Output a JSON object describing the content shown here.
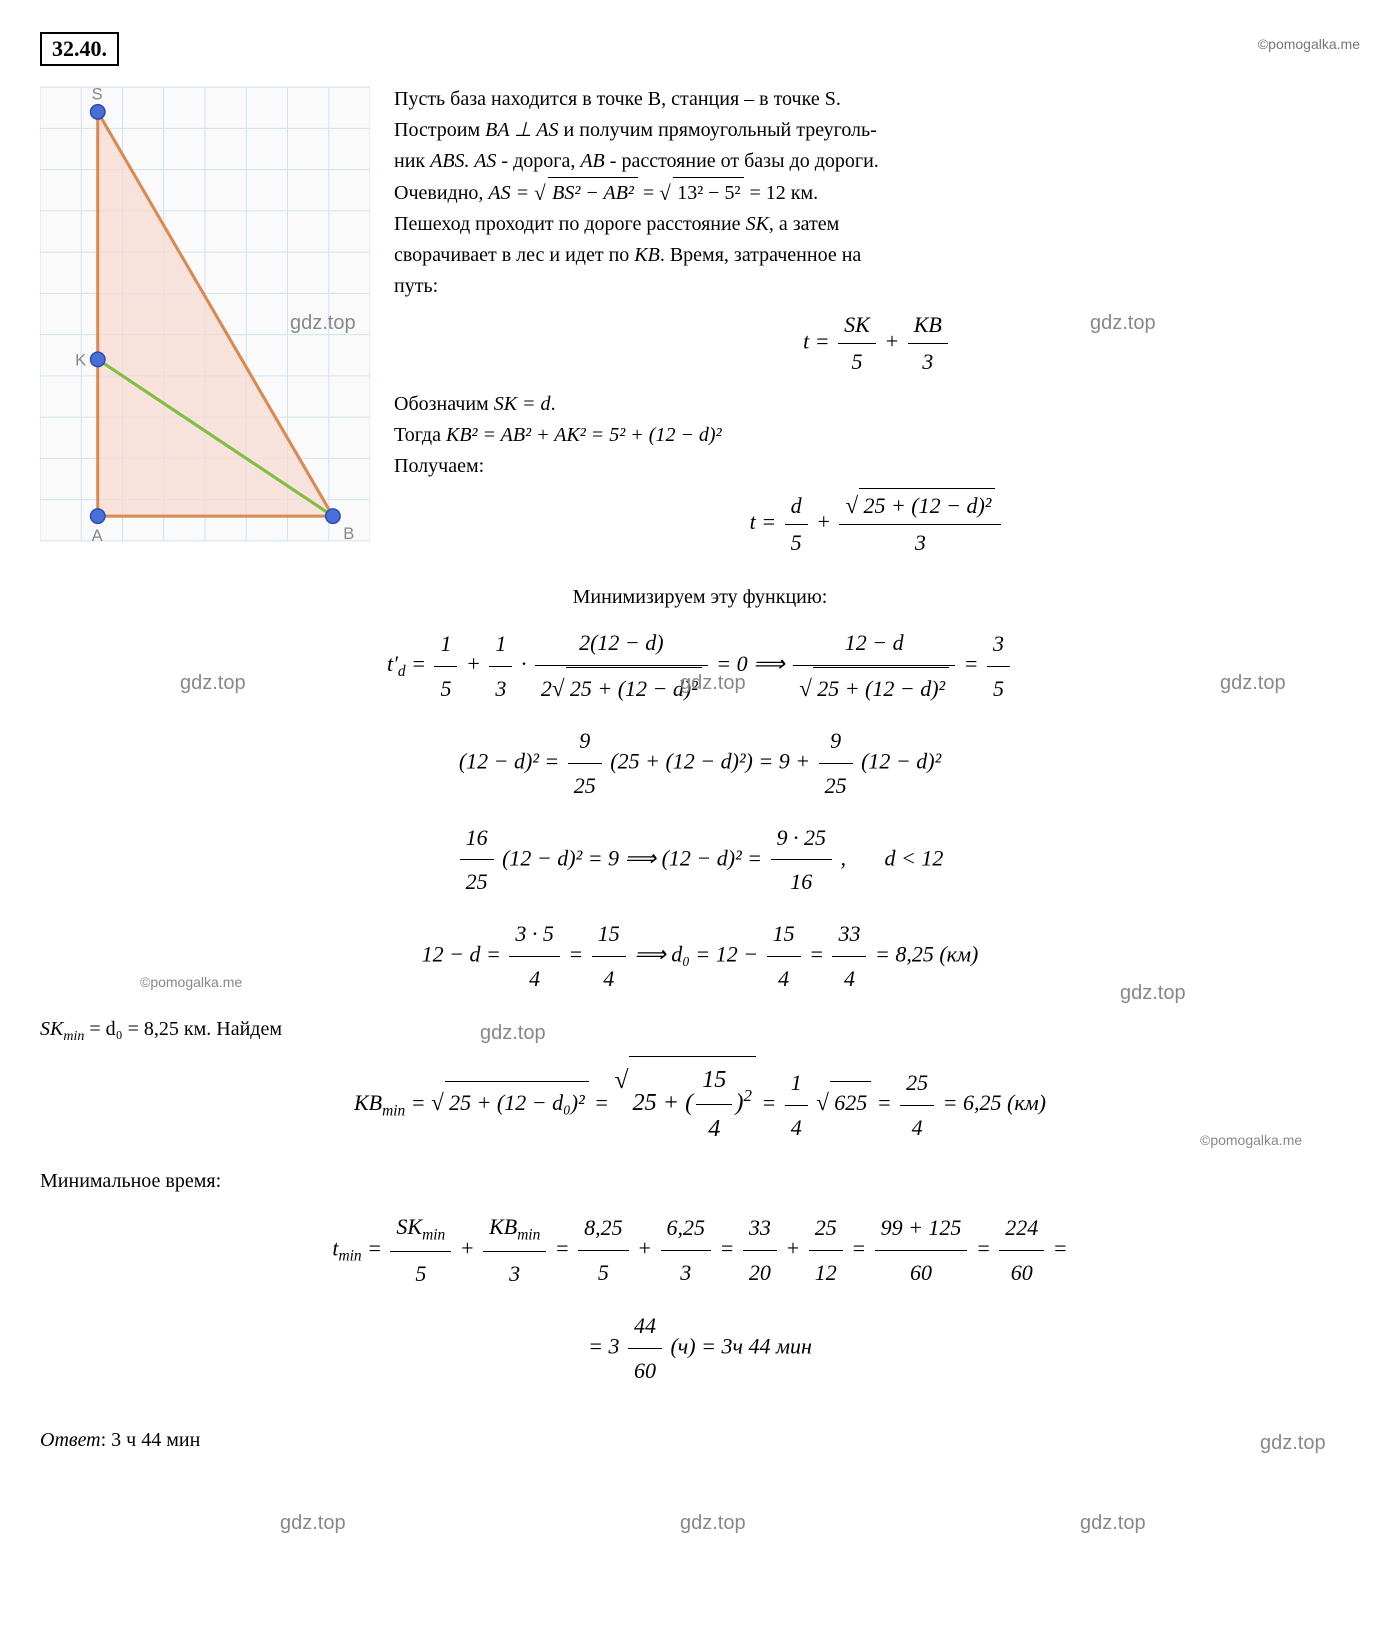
{
  "problem_number": "32.40.",
  "watermarks": {
    "pomogalka": "©pomogalka.me",
    "gdz": "gdz.top"
  },
  "diagram": {
    "grid": {
      "cell": 40,
      "cols": 8,
      "rows": 11,
      "bg": "#fafafa",
      "grid_color": "#cfe3ef"
    },
    "points": {
      "S": {
        "x": 1.4,
        "y": 0.6,
        "label": "S",
        "label_color": "#888"
      },
      "K": {
        "x": 1.4,
        "y": 6.6,
        "label": "K",
        "label_color": "#888"
      },
      "A": {
        "x": 1.4,
        "y": 10.4,
        "label": "A",
        "label_color": "#888"
      },
      "B": {
        "x": 7.1,
        "y": 10.4,
        "label": "B",
        "label_color": "#888"
      }
    },
    "triangle_fill": "#f5d9d1",
    "edge_color": "#d88a52",
    "kb_color": "#7fbf3f",
    "point_fill": "#4a6fd8",
    "point_stroke": "#2a4fb0"
  },
  "text": {
    "p1a": "Пусть база находится в точке B, станция – в точке S.",
    "p1b_prefix": "Построим ",
    "p1b_math": "BA ⊥ AS",
    "p1b_suffix": " и получим прямоугольный треуголь-",
    "p1c": "ник ",
    "p1c_abs": "ABS. AS",
    "p1c_mid": " - дорога, ",
    "p1c_ab": "AB",
    "p1c_end": " - расстояние от базы до дороги.",
    "p2_prefix": "Очевидно, ",
    "p2_lhs": "AS = ",
    "p2_rad1": "BS² − AB²",
    "p2_eq": " = ",
    "p2_rad2": "13² − 5²",
    "p2_result": " = 12 км.",
    "p3a": "Пешеход проходит по дороге расстояние ",
    "p3a_sk": "SK",
    "p3a_end": ", а затем",
    "p3b": "сворачивает в лес и идет по ",
    "p3b_kb": "KB",
    "p3b_end": ". Время, затраченное на",
    "p3c": "путь:",
    "formula1_lhs": "t = ",
    "formula1_f1_num": "SK",
    "formula1_f1_den": "5",
    "formula1_plus": " + ",
    "formula1_f2_num": "KB",
    "formula1_f2_den": "3",
    "p4a": "Обозначим ",
    "p4a_math": "SK = d",
    "p4a_dot": ".",
    "p4b_prefix": "Тогда ",
    "p4b_math": "KB² = AB² + AK² = 5² + (12 − d)²",
    "p4c": "Получаем:",
    "formula2_lhs": "t = ",
    "formula2_f1_num": "d",
    "formula2_f1_den": "5",
    "formula2_plus": " + ",
    "formula2_f2_num_rad": "25 + (12 − d)²",
    "formula2_f2_den": "3",
    "p5": "Минимизируем эту функцию:",
    "deriv_lhs": "t′",
    "deriv_sub": "d",
    "deriv_eq1": " = ",
    "deriv_f1_num": "1",
    "deriv_f1_den": "5",
    "deriv_plus1": " + ",
    "deriv_f2_num": "1",
    "deriv_f2_den": "3",
    "deriv_dot": " · ",
    "deriv_f3_num": "2(12 − d)",
    "deriv_f3_den_pre": "2",
    "deriv_f3_den_rad": "25 + (12 − d)²",
    "deriv_eq0": " = 0 ⟹ ",
    "deriv_f4_num": "12 − d",
    "deriv_f4_den_rad": "25 + (12 − d)²",
    "deriv_rhs_eq": " = ",
    "deriv_f5_num": "3",
    "deriv_f5_den": "5",
    "line6_lhs": "(12 − d)² = ",
    "line6_f1_num": "9",
    "line6_f1_den": "25",
    "line6_mid": "(25 + (12 − d)²) = 9 + ",
    "line6_f2_num": "9",
    "line6_f2_den": "25",
    "line6_end": "(12 − d)²",
    "line7_f1_num": "16",
    "line7_f1_den": "25",
    "line7_mid1": "(12 − d)² = 9 ⟹ (12 − d)² = ",
    "line7_f2_num": "9 · 25",
    "line7_f2_den": "16",
    "line7_comma": ",      ",
    "line7_cond": "d < 12",
    "line8_lhs": "12 − d = ",
    "line8_f1_num": "3 · 5",
    "line8_f1_den": "4",
    "line8_eq1": " = ",
    "line8_f2_num": "15",
    "line8_f2_den": "4",
    "line8_arrow": " ⟹ ",
    "line8_d0": "d₀ = 12 − ",
    "line8_f3_num": "15",
    "line8_f3_den": "4",
    "line8_eq2": " = ",
    "line8_f4_num": "33",
    "line8_f4_den": "4",
    "line8_result": " = 8,25 (км)",
    "line9_lhs": "SK",
    "line9_sub": "min",
    "line9_mid": " = d₀ = 8,25 км.  Найдем",
    "line10_lhs": "KB",
    "line10_sub": "min",
    "line10_eq1": " = ",
    "line10_rad1": "25 + (12 − d₀)²",
    "line10_eq2": " = ",
    "line10_rad2_pre": "25 + ",
    "line10_rad2_frac_num": "15",
    "line10_rad2_frac_den": "4",
    "line10_rad2_sup": "2",
    "line10_eq3": " = ",
    "line10_f1_num": "1",
    "line10_f1_den": "4",
    "line10_rad3": "625",
    "line10_eq4": " = ",
    "line10_f2_num": "25",
    "line10_f2_den": "4",
    "line10_result": " = 6,25 (км)",
    "p11": "Минимальное время:",
    "line12_lhs": "t",
    "line12_sub": "min",
    "line12_eq1": " = ",
    "line12_f1_num": "SK",
    "line12_f1_sub": "min",
    "line12_f1_den": "5",
    "line12_plus1": " + ",
    "line12_f2_num": "KB",
    "line12_f2_sub": "min",
    "line12_f2_den": "3",
    "line12_eq2": " = ",
    "line12_f3_num": "8,25",
    "line12_f3_den": "5",
    "line12_plus2": " + ",
    "line12_f4_num": "6,25",
    "line12_f4_den": "3",
    "line12_eq3": " = ",
    "line12_f5_num": "33",
    "line12_f5_den": "20",
    "line12_plus3": " + ",
    "line12_f6_num": "25",
    "line12_f6_den": "12",
    "line12_eq4": " = ",
    "line12_f7_num": "99 + 125",
    "line12_f7_den": "60",
    "line12_eq5": " = ",
    "line12_f8_num": "224",
    "line12_f8_den": "60",
    "line12_eq6": " =",
    "line13_eq": "= 3",
    "line13_f_num": "44",
    "line13_f_den": "60",
    "line13_unit": " (ч) = 3ч 44 мин",
    "answer_label": "Ответ",
    "answer_value": ": 3 ч 44 мин"
  }
}
